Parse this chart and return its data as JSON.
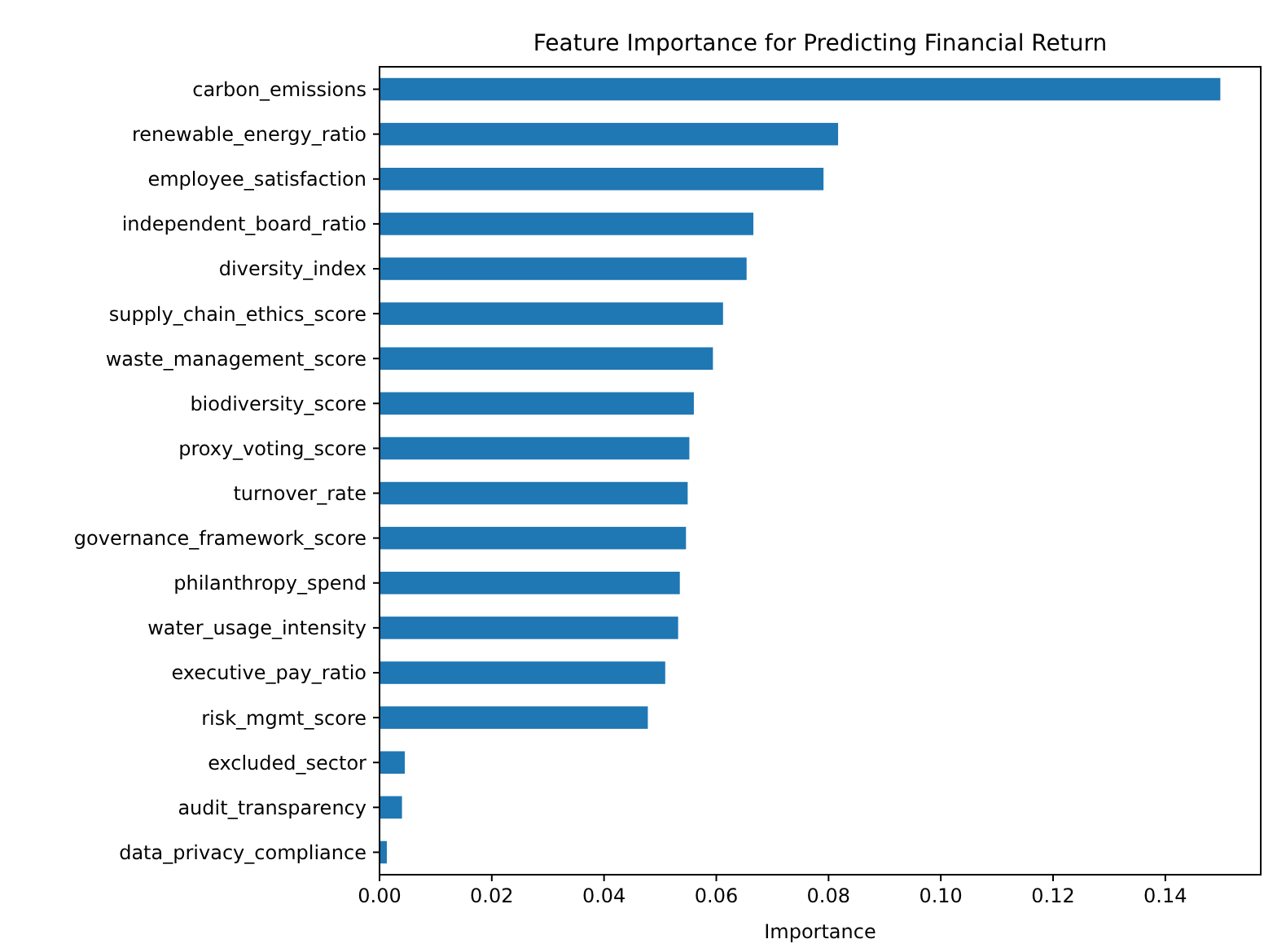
{
  "chart_data": {
    "type": "bar",
    "orientation": "horizontal",
    "title": "Feature Importance for Predicting Financial Return",
    "xlabel": "Importance",
    "categories": [
      "carbon_emissions",
      "renewable_energy_ratio",
      "employee_satisfaction",
      "independent_board_ratio",
      "diversity_index",
      "supply_chain_ethics_score",
      "waste_management_score",
      "biodiversity_score",
      "proxy_voting_score",
      "turnover_rate",
      "governance_framework_score",
      "philanthropy_spend",
      "water_usage_intensity",
      "executive_pay_ratio",
      "risk_mgmt_score",
      "excluded_sector",
      "audit_transparency",
      "data_privacy_compliance"
    ],
    "values": [
      0.1498,
      0.0817,
      0.0791,
      0.0666,
      0.0654,
      0.0612,
      0.0594,
      0.056,
      0.0552,
      0.0549,
      0.0546,
      0.0535,
      0.0532,
      0.0509,
      0.0478,
      0.0045,
      0.004,
      0.0013
    ],
    "color": "#1f77b4",
    "xlim": [
      0,
      0.157
    ],
    "xticks": [
      {
        "value": 0,
        "label": "0.00"
      },
      {
        "value": 0.02,
        "label": "0.02"
      },
      {
        "value": 0.04,
        "label": "0.04"
      },
      {
        "value": 0.06,
        "label": "0.06"
      },
      {
        "value": 0.08,
        "label": "0.08"
      },
      {
        "value": 0.1,
        "label": "0.10"
      },
      {
        "value": 0.12,
        "label": "0.12"
      },
      {
        "value": 0.14,
        "label": "0.14"
      }
    ],
    "grid": false
  }
}
